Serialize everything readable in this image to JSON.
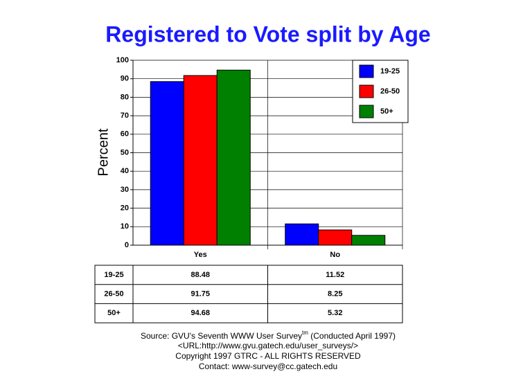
{
  "chart_data": {
    "type": "bar",
    "title": "Registered to Vote split by Age",
    "y_label": "Percent",
    "categories": [
      "Yes",
      "No"
    ],
    "series": [
      {
        "name": "19-25",
        "color": "#0000ff",
        "values": [
          88.48,
          11.52
        ]
      },
      {
        "name": "26-50",
        "color": "#ff0000",
        "values": [
          91.75,
          8.25
        ]
      },
      {
        "name": "50+",
        "color": "#008000",
        "values": [
          94.68,
          5.32
        ]
      }
    ],
    "ylim": [
      0,
      100
    ],
    "yticks": [
      0,
      10,
      20,
      30,
      40,
      50,
      60,
      70,
      80,
      90,
      100
    ],
    "grid": true,
    "legend": "top-right",
    "source": {
      "prefix": "Source: GVU's Seventh WWW User Survey",
      "superscript": "tm",
      "suffix": " (Conducted April 1997)",
      "lines": [
        "<URL:http://www.gvu.gatech.edu/user_surveys/>",
        "Copyright 1997 GTRC - ALL RIGHTS RESERVED",
        "Contact: www-survey@cc.gatech.edu"
      ]
    }
  }
}
